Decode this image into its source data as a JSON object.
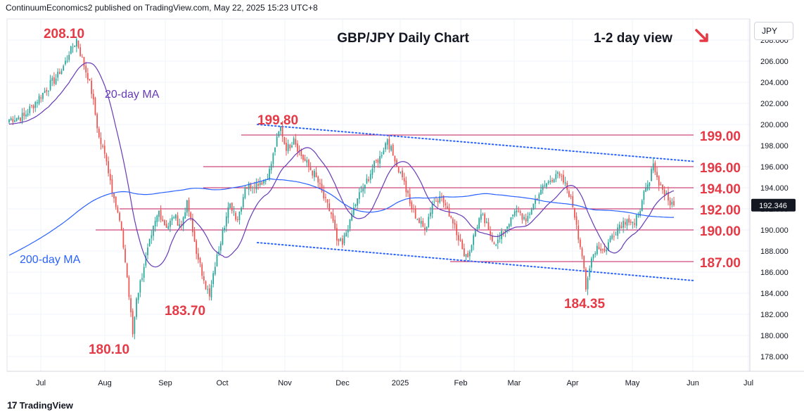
{
  "header": {
    "published_text": "ContinuumEconomics2 published on TradingView.com, May 22, 2025 15:23 UTC+8"
  },
  "footer": {
    "brand": "TradingView"
  },
  "price_axis": {
    "currency": "JPY"
  },
  "colors": {
    "up": "#26a69a",
    "down": "#ef5350",
    "ma20": "#673ab7",
    "ma200": "#2962ff",
    "annotation": "#e53946",
    "level_line": "#c2185b",
    "trendline": "#2962ff",
    "last_price_bg": "#131722"
  },
  "chart_data": {
    "type": "candlestick",
    "title": "GBP/JPY Daily Chart",
    "subtitle": "1-2 day view",
    "view_arrow": "down-right",
    "ylim": [
      176.6,
      210.0
    ],
    "y_ticks": [
      "178.000",
      "180.000",
      "182.000",
      "184.000",
      "186.000",
      "188.000",
      "190.000",
      "192.000",
      "194.000",
      "196.000",
      "198.000",
      "200.000",
      "202.000",
      "204.000",
      "206.000",
      "208.000"
    ],
    "x_ticks": [
      "Jul",
      "Aug",
      "Sep",
      "Oct",
      "Nov",
      "Dec",
      "2025",
      "Feb",
      "Mar",
      "Apr",
      "May",
      "Jun",
      "Jul"
    ],
    "last_price": "192.346",
    "series_labels": {
      "ma20": "20-day MA",
      "ma200": "200-day MA"
    },
    "levels": [
      {
        "label": "199.00",
        "value": 199.0
      },
      {
        "label": "196.00",
        "value": 196.0
      },
      {
        "label": "194.00",
        "value": 194.0
      },
      {
        "label": "192.00",
        "value": 192.0
      },
      {
        "label": "190.00",
        "value": 190.0
      },
      {
        "label": "187.00",
        "value": 187.0
      }
    ],
    "annotations": [
      {
        "text": "208.10",
        "value": 208.1
      },
      {
        "text": "199.80",
        "value": 199.8
      },
      {
        "text": "183.70",
        "value": 183.7
      },
      {
        "text": "180.10",
        "value": 180.1
      },
      {
        "text": "184.35",
        "value": 184.35
      }
    ],
    "trendlines": [
      {
        "name": "upper-channel",
        "from": 200.0,
        "to": 196.5
      },
      {
        "name": "lower-channel",
        "from": 188.8,
        "to": 185.2
      }
    ],
    "ohlc_waypoints": [
      [
        0,
        200.5
      ],
      [
        8,
        200.8
      ],
      [
        18,
        203.0
      ],
      [
        27,
        204.8
      ],
      [
        32,
        206.6
      ],
      [
        36,
        208.1
      ],
      [
        40,
        205.5
      ],
      [
        43,
        204.2
      ],
      [
        48,
        198.8
      ],
      [
        52,
        196.5
      ],
      [
        56,
        193.0
      ],
      [
        60,
        190.0
      ],
      [
        63,
        185.5
      ],
      [
        66,
        180.1
      ],
      [
        68,
        183.5
      ],
      [
        72,
        186.5
      ],
      [
        76,
        189.5
      ],
      [
        80,
        191.8
      ],
      [
        84,
        190.2
      ],
      [
        88,
        191.2
      ],
      [
        92,
        190.5
      ],
      [
        95,
        192.8
      ],
      [
        98,
        189.8
      ],
      [
        101,
        187.2
      ],
      [
        104,
        185.2
      ],
      [
        107,
        183.7
      ],
      [
        110,
        186.5
      ],
      [
        114,
        190.0
      ],
      [
        118,
        192.5
      ],
      [
        122,
        191.0
      ],
      [
        126,
        194.0
      ],
      [
        132,
        194.5
      ],
      [
        138,
        194.8
      ],
      [
        142,
        197.8
      ],
      [
        145,
        199.8
      ],
      [
        148,
        197.5
      ],
      [
        152,
        198.7
      ],
      [
        156,
        197.0
      ],
      [
        160,
        196.0
      ],
      [
        164,
        195.0
      ],
      [
        168,
        193.0
      ],
      [
        172,
        191.5
      ],
      [
        175,
        189.0
      ],
      [
        178,
        188.6
      ],
      [
        182,
        191.0
      ],
      [
        186,
        193.0
      ],
      [
        190,
        194.3
      ],
      [
        194,
        195.8
      ],
      [
        198,
        197.0
      ],
      [
        202,
        198.6
      ],
      [
        206,
        196.5
      ],
      [
        210,
        195.0
      ],
      [
        214,
        192.5
      ],
      [
        218,
        191.0
      ],
      [
        222,
        190.0
      ],
      [
        226,
        192.5
      ],
      [
        230,
        193.2
      ],
      [
        234,
        192.0
      ],
      [
        238,
        190.5
      ],
      [
        242,
        188.2
      ],
      [
        245,
        187.4
      ],
      [
        248,
        189.5
      ],
      [
        252,
        191.5
      ],
      [
        256,
        190.0
      ],
      [
        260,
        188.6
      ],
      [
        264,
        189.8
      ],
      [
        268,
        191.2
      ],
      [
        272,
        191.8
      ],
      [
        276,
        190.8
      ],
      [
        280,
        192.5
      ],
      [
        284,
        193.8
      ],
      [
        288,
        194.6
      ],
      [
        292,
        195.3
      ],
      [
        296,
        194.5
      ],
      [
        300,
        193.2
      ],
      [
        303,
        190.5
      ],
      [
        306,
        187.5
      ],
      [
        308,
        184.35
      ],
      [
        311,
        187.3
      ],
      [
        314,
        188.5
      ],
      [
        318,
        188.0
      ],
      [
        322,
        189.5
      ],
      [
        326,
        190.5
      ],
      [
        330,
        191.0
      ],
      [
        334,
        190.5
      ],
      [
        338,
        192.8
      ],
      [
        342,
        194.5
      ],
      [
        344,
        196.3
      ],
      [
        346,
        195.0
      ],
      [
        349,
        193.8
      ],
      [
        352,
        192.8
      ],
      [
        355,
        192.346
      ]
    ]
  }
}
